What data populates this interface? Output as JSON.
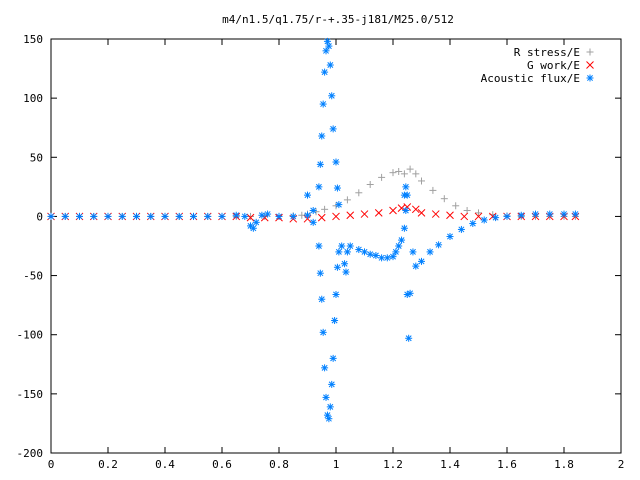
{
  "chart_data": {
    "type": "scatter",
    "title": "m4/n1.5/q1.75/r-+.35-j181/M25.0/512",
    "xlabel": "",
    "ylabel": "",
    "xlim": [
      0,
      2
    ],
    "ylim": [
      -200,
      150
    ],
    "xticks": [
      "0",
      "0.2",
      "0.4",
      "0.6",
      "0.8",
      "1",
      "1.2",
      "1.4",
      "1.6",
      "1.8",
      "2"
    ],
    "yticks": [
      "150",
      "100",
      "50",
      "0",
      "-50",
      "-100",
      "-150",
      "-200"
    ],
    "grid": false,
    "legend_position": "top-right",
    "series": [
      {
        "name": "R stress/E",
        "marker": "plus",
        "color": "#a0a0a0",
        "points": [
          [
            0.0,
            0
          ],
          [
            0.05,
            0
          ],
          [
            0.1,
            0
          ],
          [
            0.15,
            0
          ],
          [
            0.2,
            0
          ],
          [
            0.25,
            0
          ],
          [
            0.3,
            0
          ],
          [
            0.35,
            0
          ],
          [
            0.4,
            0
          ],
          [
            0.45,
            0
          ],
          [
            0.5,
            0
          ],
          [
            0.55,
            0
          ],
          [
            0.6,
            0
          ],
          [
            0.65,
            0
          ],
          [
            0.7,
            0
          ],
          [
            0.75,
            0
          ],
          [
            0.8,
            0
          ],
          [
            0.85,
            0.5
          ],
          [
            0.88,
            1
          ],
          [
            0.9,
            2
          ],
          [
            0.93,
            4
          ],
          [
            0.96,
            6
          ],
          [
            1.0,
            9
          ],
          [
            1.04,
            14
          ],
          [
            1.08,
            20
          ],
          [
            1.12,
            27
          ],
          [
            1.16,
            33
          ],
          [
            1.2,
            37
          ],
          [
            1.22,
            38
          ],
          [
            1.24,
            36
          ],
          [
            1.26,
            40
          ],
          [
            1.28,
            36
          ],
          [
            1.3,
            30
          ],
          [
            1.34,
            22
          ],
          [
            1.38,
            15
          ],
          [
            1.42,
            9
          ],
          [
            1.46,
            5
          ],
          [
            1.5,
            3
          ],
          [
            1.55,
            1.5
          ],
          [
            1.6,
            0.5
          ],
          [
            1.65,
            0
          ],
          [
            1.7,
            0
          ],
          [
            1.75,
            0
          ],
          [
            1.8,
            0
          ],
          [
            1.84,
            0
          ]
        ]
      },
      {
        "name": "G work/E",
        "marker": "cross",
        "color": "#ff0000",
        "points": [
          [
            0.0,
            0
          ],
          [
            0.05,
            0
          ],
          [
            0.1,
            0
          ],
          [
            0.15,
            0
          ],
          [
            0.2,
            0
          ],
          [
            0.25,
            0
          ],
          [
            0.3,
            0
          ],
          [
            0.35,
            0
          ],
          [
            0.4,
            0
          ],
          [
            0.45,
            0
          ],
          [
            0.5,
            0
          ],
          [
            0.55,
            0
          ],
          [
            0.6,
            0
          ],
          [
            0.65,
            0
          ],
          [
            0.7,
            -1
          ],
          [
            0.75,
            -1
          ],
          [
            0.8,
            -1
          ],
          [
            0.85,
            -2
          ],
          [
            0.9,
            -2
          ],
          [
            0.95,
            -1
          ],
          [
            1.0,
            0
          ],
          [
            1.05,
            1
          ],
          [
            1.1,
            2
          ],
          [
            1.15,
            3
          ],
          [
            1.2,
            5
          ],
          [
            1.23,
            7
          ],
          [
            1.25,
            8
          ],
          [
            1.28,
            6
          ],
          [
            1.3,
            3
          ],
          [
            1.35,
            2
          ],
          [
            1.4,
            1
          ],
          [
            1.45,
            0
          ],
          [
            1.5,
            0
          ],
          [
            1.55,
            0
          ],
          [
            1.6,
            0
          ],
          [
            1.65,
            0
          ],
          [
            1.7,
            0
          ],
          [
            1.75,
            0
          ],
          [
            1.8,
            0
          ],
          [
            1.84,
            0
          ]
        ]
      },
      {
        "name": "Acoustic flux/E",
        "marker": "star",
        "color": "#0080ff",
        "points": [
          [
            0.0,
            0
          ],
          [
            0.05,
            0
          ],
          [
            0.1,
            0
          ],
          [
            0.15,
            0
          ],
          [
            0.2,
            0
          ],
          [
            0.25,
            0
          ],
          [
            0.3,
            0
          ],
          [
            0.35,
            0
          ],
          [
            0.4,
            0
          ],
          [
            0.45,
            0
          ],
          [
            0.5,
            0
          ],
          [
            0.55,
            0
          ],
          [
            0.6,
            0
          ],
          [
            0.65,
            1
          ],
          [
            0.68,
            0
          ],
          [
            0.7,
            -8
          ],
          [
            0.71,
            -10
          ],
          [
            0.72,
            -5
          ],
          [
            0.74,
            1
          ],
          [
            0.76,
            2
          ],
          [
            0.8,
            0
          ],
          [
            0.85,
            0
          ],
          [
            0.9,
            1
          ],
          [
            0.92,
            -5
          ],
          [
            0.94,
            -25
          ],
          [
            0.945,
            -48
          ],
          [
            0.95,
            -70
          ],
          [
            0.955,
            -98
          ],
          [
            0.96,
            -128
          ],
          [
            0.965,
            -153
          ],
          [
            0.97,
            -168
          ],
          [
            0.975,
            -171
          ],
          [
            0.98,
            -161
          ],
          [
            0.985,
            -142
          ],
          [
            0.99,
            -120
          ],
          [
            0.995,
            -88
          ],
          [
            1.0,
            -66
          ],
          [
            1.005,
            -43
          ],
          [
            1.01,
            -30
          ],
          [
            1.02,
            -25
          ],
          [
            1.03,
            -40
          ],
          [
            1.035,
            -47
          ],
          [
            1.04,
            -30
          ],
          [
            1.05,
            -25
          ],
          [
            1.08,
            -28
          ],
          [
            1.1,
            -30
          ],
          [
            1.12,
            -32
          ],
          [
            1.14,
            -33
          ],
          [
            1.16,
            -35
          ],
          [
            1.18,
            -35
          ],
          [
            1.2,
            -34
          ],
          [
            1.21,
            -30
          ],
          [
            1.22,
            -25
          ],
          [
            1.23,
            -20
          ],
          [
            1.24,
            -10
          ],
          [
            1.245,
            5
          ],
          [
            1.25,
            -66
          ],
          [
            1.255,
            -103
          ],
          [
            1.26,
            -65
          ],
          [
            1.27,
            -30
          ],
          [
            1.28,
            -42
          ],
          [
            1.3,
            -38
          ],
          [
            1.33,
            -30
          ],
          [
            1.36,
            -24
          ],
          [
            1.4,
            -17
          ],
          [
            1.44,
            -11
          ],
          [
            1.48,
            -6
          ],
          [
            1.52,
            -3
          ],
          [
            1.56,
            -1
          ],
          [
            1.6,
            0
          ],
          [
            1.65,
            1
          ],
          [
            1.7,
            2
          ],
          [
            1.75,
            2
          ],
          [
            1.8,
            2
          ],
          [
            1.84,
            2
          ],
          [
            0.9,
            18
          ],
          [
            0.92,
            5
          ],
          [
            0.94,
            25
          ],
          [
            0.945,
            44
          ],
          [
            0.95,
            68
          ],
          [
            0.955,
            95
          ],
          [
            0.96,
            122
          ],
          [
            0.965,
            140
          ],
          [
            0.97,
            148
          ],
          [
            0.975,
            144
          ],
          [
            0.98,
            128
          ],
          [
            0.985,
            102
          ],
          [
            0.99,
            74
          ],
          [
            1.0,
            46
          ],
          [
            1.005,
            24
          ],
          [
            1.01,
            10
          ],
          [
            1.24,
            18
          ],
          [
            1.245,
            25
          ],
          [
            1.25,
            18
          ]
        ]
      }
    ]
  }
}
